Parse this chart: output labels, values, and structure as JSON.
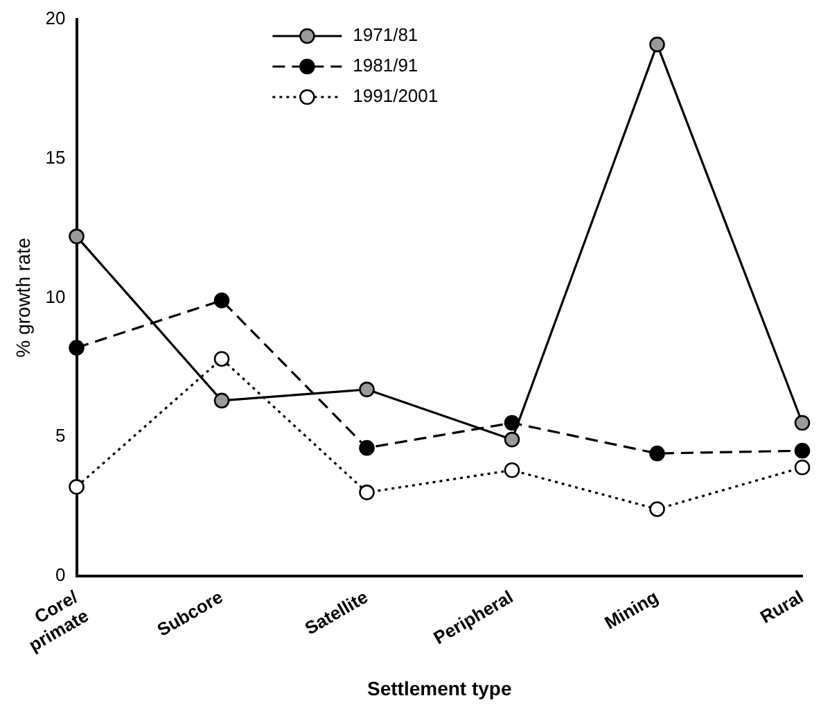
{
  "chart_data": {
    "type": "line",
    "xlabel": "Settlement type",
    "ylabel": "% growth rate",
    "categories": [
      "Core/\nprimate",
      "Subcore",
      "Satellite",
      "Peripheral",
      "Mining",
      "Rural"
    ],
    "ylim": [
      0,
      20
    ],
    "yticks": [
      0,
      5,
      10,
      15,
      20
    ],
    "grid": false,
    "legend": "top left",
    "marker": "circle",
    "series": [
      {
        "name": "1971/81",
        "color": "#9a9a9a",
        "line_style": "solid",
        "values": [
          12.2,
          6.3,
          6.7,
          4.9,
          19.1,
          5.5
        ]
      },
      {
        "name": "1981/91",
        "color": "#000000",
        "line_style": "dashed",
        "values": [
          8.2,
          9.9,
          4.6,
          5.5,
          4.4,
          4.5
        ]
      },
      {
        "name": "1991/2001",
        "color": "#ffffff",
        "line_style": "dotted",
        "values": [
          3.2,
          7.8,
          3.0,
          3.8,
          2.4,
          3.9
        ]
      }
    ]
  }
}
